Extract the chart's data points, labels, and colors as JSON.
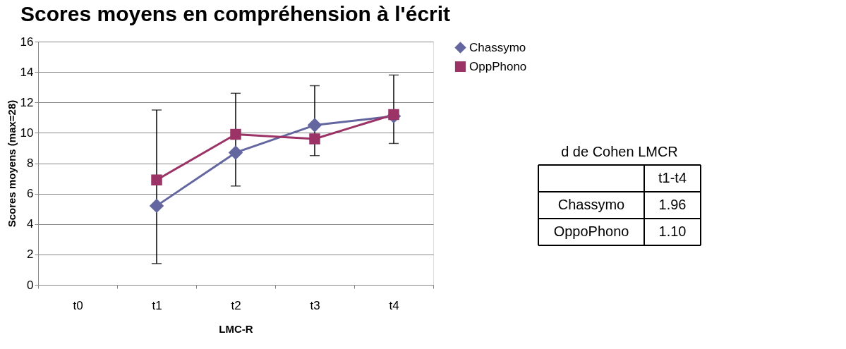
{
  "chart_data": {
    "type": "line",
    "title": "Scores moyens en compréhension à l'écrit",
    "xlabel": "LMC-R",
    "ylabel": "Scores moyens (max=28)",
    "categories": [
      "t0",
      "t1",
      "t2",
      "t3",
      "t4"
    ],
    "series": [
      {
        "name": "Chassymo",
        "color": "#6466a0",
        "marker": "diamond",
        "values": [
          null,
          5.2,
          8.7,
          10.5,
          11.1
        ],
        "errors": [
          null,
          [
            1.4,
            11.5
          ],
          [
            6.5,
            12.6
          ],
          [
            8.5,
            13.1
          ],
          [
            9.3,
            13.8
          ]
        ]
      },
      {
        "name": "OppPhono",
        "color": "#9b3366",
        "marker": "square",
        "values": [
          null,
          6.9,
          9.9,
          9.6,
          11.2
        ]
      }
    ],
    "ylim": [
      0,
      16
    ],
    "yticks": [
      0,
      2,
      4,
      6,
      8,
      10,
      12,
      14,
      16
    ],
    "grid": "y",
    "legend": "right",
    "annotations": [
      "d de Cohen LMCR",
      "t1-t4",
      "Chassymo",
      "1.96",
      "OppoPhono",
      "1.10"
    ]
  }
}
